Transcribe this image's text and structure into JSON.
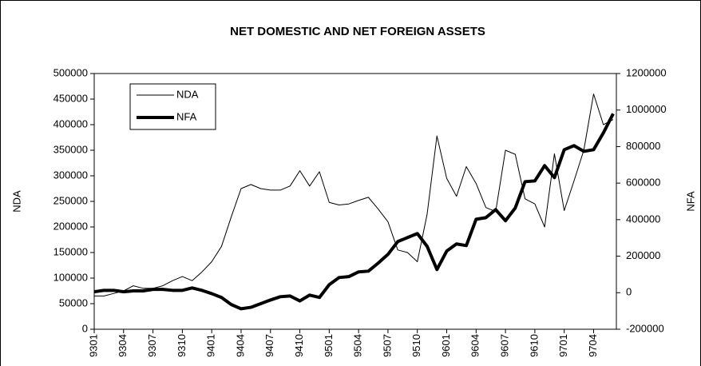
{
  "chart_data": {
    "type": "line",
    "title": "NET DOMESTIC AND NET FOREIGN ASSETS",
    "y_label": "NDA",
    "y2_label": "NFA",
    "categories": [
      "9301",
      null,
      null,
      "9304",
      null,
      null,
      "9307",
      null,
      null,
      "9310",
      null,
      null,
      "9401",
      null,
      null,
      "9404",
      null,
      null,
      "9407",
      null,
      null,
      "9410",
      null,
      null,
      "9501",
      null,
      null,
      "9504",
      null,
      null,
      "9507",
      null,
      null,
      "9510",
      null,
      null,
      "9601",
      null,
      null,
      "9604",
      null,
      null,
      "9607",
      null,
      null,
      "9610",
      null,
      null,
      "9701",
      null,
      null,
      "9704",
      null,
      null
    ],
    "series": [
      {
        "name": "NDA",
        "color": "#000000",
        "width": 1,
        "values": [
          65000,
          65000,
          70000,
          75000,
          85000,
          80000,
          80000,
          85000,
          95000,
          103000,
          95000,
          112000,
          132000,
          162000,
          220000,
          275000,
          283000,
          275000,
          272000,
          272000,
          280000,
          310000,
          280000,
          308000,
          248000,
          243000,
          245000,
          252000,
          258000,
          235000,
          210000,
          155000,
          150000,
          132000,
          225000,
          378000,
          295000,
          260000,
          318000,
          285000,
          238000,
          230000,
          350000,
          342000,
          255000,
          245000,
          200000,
          343000,
          232000,
          290000,
          350000,
          460000,
          400000,
          410000
        ]
      },
      {
        "name": "NFA",
        "color": "#000000",
        "width": 4,
        "axis": "y2",
        "values": [
          5000,
          13000,
          13000,
          5000,
          10000,
          10000,
          18000,
          18000,
          13000,
          13000,
          26000,
          13000,
          -5000,
          -26000,
          -65000,
          -88000,
          -80000,
          -60000,
          -40000,
          -22000,
          -18000,
          -45000,
          -13000,
          -26000,
          44000,
          83000,
          88000,
          114000,
          118000,
          162000,
          210000,
          280000,
          302000,
          324000,
          254000,
          127000,
          228000,
          267000,
          258000,
          402000,
          411000,
          455000,
          394000,
          464000,
          608000,
          612000,
          696000,
          630000,
          783000,
          805000,
          774000,
          783000,
          875000,
          980000
        ]
      }
    ],
    "ylim": [
      0,
      500000
    ],
    "yticks": [
      0,
      50000,
      100000,
      150000,
      200000,
      250000,
      300000,
      350000,
      400000,
      450000,
      500000
    ],
    "y2lim": [
      -200000,
      1200000
    ],
    "y2ticks": [
      -200000,
      0,
      200000,
      400000,
      600000,
      800000,
      1000000,
      1200000
    ],
    "grid": false,
    "legend": "upper left"
  }
}
